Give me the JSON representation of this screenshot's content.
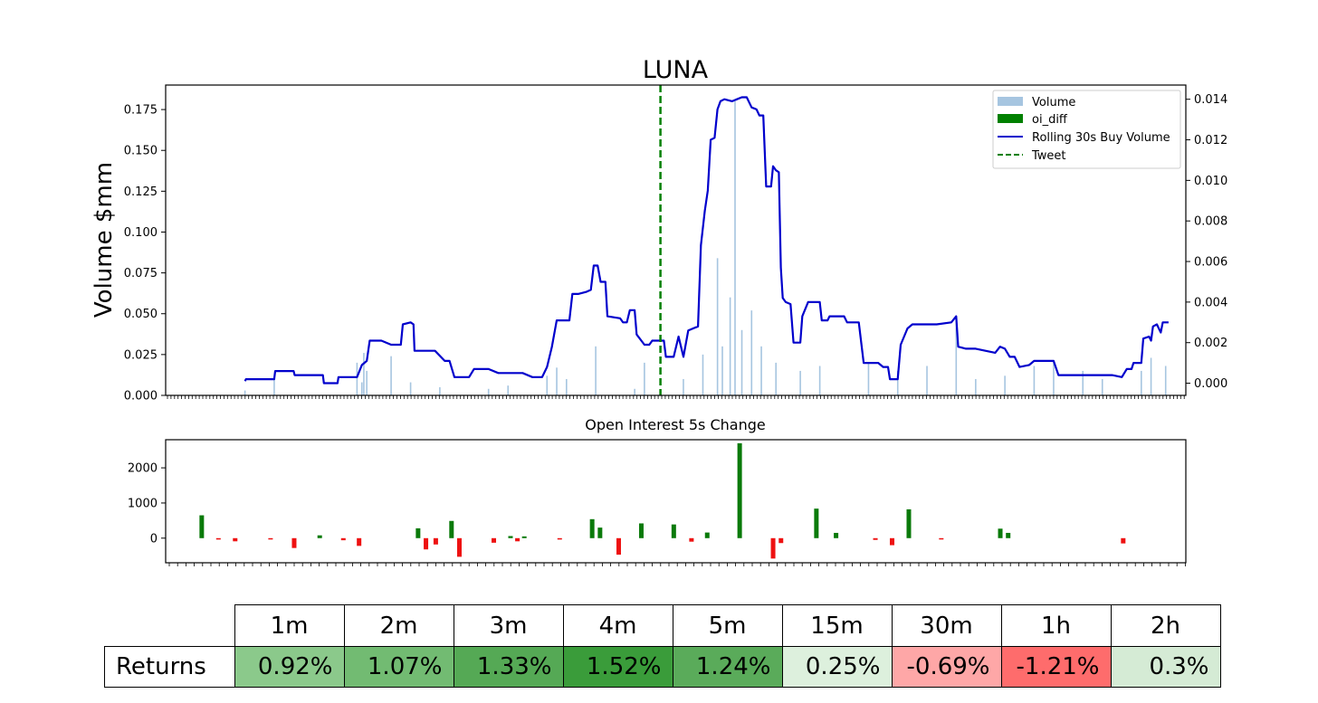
{
  "chart_data": [
    {
      "type": "bar",
      "title": "LUNA",
      "ylabel": "Volume $mm",
      "ylim": [
        0,
        0.19
      ],
      "yticks": [
        "0.000",
        "0.025",
        "0.050",
        "0.075",
        "0.100",
        "0.125",
        "0.150",
        "0.175"
      ],
      "y2lim": [
        -0.0006,
        0.0147
      ],
      "y2ticks": [
        "0.000",
        "0.002",
        "0.004",
        "0.006",
        "0.008",
        "0.010",
        "0.012",
        "0.014"
      ],
      "legend_position": "top-right",
      "legend": [
        "Volume",
        "oi_diff",
        "Rolling 30s Buy Volume",
        "Tweet"
      ],
      "colors": {
        "volume": "#a6c5e0",
        "oi_diff": "#008000",
        "rolling": "#0000cc",
        "tweet": "#008000"
      },
      "tweet_x": 0.485,
      "volume_spikes": [
        [
          0.05,
          0.003
        ],
        [
          0.08,
          0.01
        ],
        [
          0.17,
          0.008
        ],
        [
          0.165,
          0.02
        ],
        [
          0.172,
          0.026
        ],
        [
          0.175,
          0.015
        ],
        [
          0.2,
          0.024
        ],
        [
          0.22,
          0.008
        ],
        [
          0.25,
          0.005
        ],
        [
          0.3,
          0.004
        ],
        [
          0.32,
          0.006
        ],
        [
          0.36,
          0.012
        ],
        [
          0.37,
          0.017
        ],
        [
          0.38,
          0.01
        ],
        [
          0.41,
          0.03
        ],
        [
          0.45,
          0.004
        ],
        [
          0.46,
          0.02
        ],
        [
          0.5,
          0.01
        ],
        [
          0.52,
          0.025
        ],
        [
          0.535,
          0.084
        ],
        [
          0.54,
          0.03
        ],
        [
          0.548,
          0.06
        ],
        [
          0.553,
          0.18
        ],
        [
          0.56,
          0.04
        ],
        [
          0.57,
          0.052
        ],
        [
          0.58,
          0.03
        ],
        [
          0.595,
          0.02
        ],
        [
          0.62,
          0.015
        ],
        [
          0.64,
          0.018
        ],
        [
          0.69,
          0.02
        ],
        [
          0.72,
          0.015
        ],
        [
          0.75,
          0.018
        ],
        [
          0.78,
          0.047
        ],
        [
          0.8,
          0.01
        ],
        [
          0.83,
          0.012
        ],
        [
          0.86,
          0.018
        ],
        [
          0.88,
          0.02
        ],
        [
          0.91,
          0.015
        ],
        [
          0.93,
          0.01
        ],
        [
          0.97,
          0.015
        ],
        [
          0.98,
          0.023
        ],
        [
          0.995,
          0.018
        ]
      ],
      "series": [
        {
          "name": "Rolling 30s Buy Volume",
          "axis": "right",
          "points": [
            [
              0.05,
              0.0001
            ],
            [
              0.051,
              0.0002
            ],
            [
              0.08,
              0.0002
            ],
            [
              0.081,
              0.0006
            ],
            [
              0.1,
              0.0006
            ],
            [
              0.101,
              0.0004
            ],
            [
              0.13,
              0.0004
            ],
            [
              0.131,
              0.0
            ],
            [
              0.145,
              0.0
            ],
            [
              0.146,
              0.0003
            ],
            [
              0.165,
              0.0003
            ],
            [
              0.17,
              0.0009
            ],
            [
              0.175,
              0.0011
            ],
            [
              0.178,
              0.0021
            ],
            [
              0.19,
              0.0021
            ],
            [
              0.2,
              0.0019
            ],
            [
              0.21,
              0.0019
            ],
            [
              0.212,
              0.0029
            ],
            [
              0.22,
              0.003
            ],
            [
              0.223,
              0.0029
            ],
            [
              0.224,
              0.0016
            ],
            [
              0.235,
              0.0016
            ],
            [
              0.245,
              0.0016
            ],
            [
              0.255,
              0.0011
            ],
            [
              0.26,
              0.0011
            ],
            [
              0.265,
              0.0003
            ],
            [
              0.28,
              0.0003
            ],
            [
              0.285,
              0.0007
            ],
            [
              0.3,
              0.0007
            ],
            [
              0.31,
              0.0005
            ],
            [
              0.335,
              0.0005
            ],
            [
              0.345,
              0.0003
            ],
            [
              0.355,
              0.0003
            ],
            [
              0.36,
              0.0008
            ],
            [
              0.365,
              0.0018
            ],
            [
              0.37,
              0.0031
            ],
            [
              0.383,
              0.0031
            ],
            [
              0.386,
              0.0044
            ],
            [
              0.392,
              0.0044
            ],
            [
              0.4,
              0.0045
            ],
            [
              0.405,
              0.0046
            ],
            [
              0.408,
              0.0058
            ],
            [
              0.412,
              0.0058
            ],
            [
              0.415,
              0.005
            ],
            [
              0.42,
              0.005
            ],
            [
              0.422,
              0.0033
            ],
            [
              0.435,
              0.0032
            ],
            [
              0.438,
              0.003
            ],
            [
              0.442,
              0.003
            ],
            [
              0.445,
              0.0036
            ],
            [
              0.45,
              0.0036
            ],
            [
              0.452,
              0.0024
            ],
            [
              0.46,
              0.0019
            ],
            [
              0.465,
              0.0019
            ],
            [
              0.468,
              0.0021
            ],
            [
              0.48,
              0.0021
            ],
            [
              0.482,
              0.0013
            ],
            [
              0.49,
              0.0013
            ],
            [
              0.495,
              0.0023
            ],
            [
              0.5,
              0.0013
            ],
            [
              0.505,
              0.0026
            ],
            [
              0.51,
              0.0027
            ],
            [
              0.515,
              0.0028
            ],
            [
              0.518,
              0.0068
            ],
            [
              0.522,
              0.0085
            ],
            [
              0.525,
              0.0095
            ],
            [
              0.528,
              0.012
            ],
            [
              0.532,
              0.0121
            ],
            [
              0.535,
              0.0135
            ],
            [
              0.538,
              0.0139
            ],
            [
              0.542,
              0.014
            ],
            [
              0.55,
              0.0139
            ],
            [
              0.555,
              0.014
            ],
            [
              0.56,
              0.0141
            ],
            [
              0.565,
              0.0141
            ],
            [
              0.57,
              0.0136
            ],
            [
              0.575,
              0.0135
            ],
            [
              0.578,
              0.0132
            ],
            [
              0.582,
              0.0132
            ],
            [
              0.585,
              0.0097
            ],
            [
              0.59,
              0.0097
            ],
            [
              0.592,
              0.0107
            ],
            [
              0.595,
              0.0105
            ],
            [
              0.598,
              0.0104
            ],
            [
              0.6,
              0.0057
            ],
            [
              0.602,
              0.0042
            ],
            [
              0.605,
              0.004
            ],
            [
              0.61,
              0.0039
            ],
            [
              0.613,
              0.002
            ],
            [
              0.62,
              0.002
            ],
            [
              0.622,
              0.0033
            ],
            [
              0.628,
              0.004
            ],
            [
              0.64,
              0.004
            ],
            [
              0.642,
              0.0031
            ],
            [
              0.648,
              0.0031
            ],
            [
              0.65,
              0.0033
            ],
            [
              0.665,
              0.0033
            ],
            [
              0.668,
              0.003
            ],
            [
              0.675,
              0.003
            ],
            [
              0.68,
              0.003
            ],
            [
              0.685,
              0.001
            ],
            [
              0.7,
              0.001
            ],
            [
              0.705,
              0.0008
            ],
            [
              0.71,
              0.0008
            ],
            [
              0.712,
              0.0002
            ],
            [
              0.72,
              0.0002
            ],
            [
              0.723,
              0.0019
            ],
            [
              0.73,
              0.0027
            ],
            [
              0.735,
              0.0029
            ],
            [
              0.75,
              0.0029
            ],
            [
              0.76,
              0.0029
            ],
            [
              0.775,
              0.003
            ],
            [
              0.78,
              0.0033
            ],
            [
              0.782,
              0.0018
            ],
            [
              0.79,
              0.0017
            ],
            [
              0.8,
              0.0017
            ],
            [
              0.81,
              0.0016
            ],
            [
              0.82,
              0.0015
            ],
            [
              0.825,
              0.0018
            ],
            [
              0.83,
              0.0017
            ],
            [
              0.835,
              0.0013
            ],
            [
              0.84,
              0.0013
            ],
            [
              0.845,
              0.0008
            ],
            [
              0.855,
              0.0009
            ],
            [
              0.86,
              0.0011
            ],
            [
              0.87,
              0.0011
            ],
            [
              0.88,
              0.0011
            ],
            [
              0.885,
              0.0004
            ],
            [
              0.89,
              0.0004
            ],
            [
              0.9,
              0.0004
            ],
            [
              0.94,
              0.0004
            ],
            [
              0.95,
              0.0003
            ],
            [
              0.955,
              0.0007
            ],
            [
              0.96,
              0.0007
            ],
            [
              0.962,
              0.001
            ],
            [
              0.97,
              0.001
            ],
            [
              0.972,
              0.0022
            ],
            [
              0.978,
              0.0023
            ],
            [
              0.98,
              0.0021
            ],
            [
              0.982,
              0.0028
            ],
            [
              0.986,
              0.0029
            ],
            [
              0.99,
              0.0025
            ],
            [
              0.992,
              0.003
            ],
            [
              0.998,
              0.003
            ]
          ]
        }
      ]
    },
    {
      "type": "bar",
      "title": "Open Interest 5s Change",
      "ylim": [
        -700,
        2800
      ],
      "yticks": [
        "0",
        "1000",
        "2000"
      ],
      "bars": [
        [
          0.018,
          650
        ],
        [
          0.035,
          -40
        ],
        [
          0.052,
          -90
        ],
        [
          0.088,
          -30
        ],
        [
          0.112,
          -280
        ],
        [
          0.138,
          80
        ],
        [
          0.162,
          -60
        ],
        [
          0.178,
          -220
        ],
        [
          0.238,
          280
        ],
        [
          0.246,
          -320
        ],
        [
          0.256,
          -180
        ],
        [
          0.272,
          490
        ],
        [
          0.28,
          -530
        ],
        [
          0.315,
          -130
        ],
        [
          0.332,
          60
        ],
        [
          0.339,
          -90
        ],
        [
          0.346,
          50
        ],
        [
          0.382,
          -40
        ],
        [
          0.415,
          540
        ],
        [
          0.423,
          300
        ],
        [
          0.442,
          -470
        ],
        [
          0.465,
          420
        ],
        [
          0.498,
          390
        ],
        [
          0.516,
          -100
        ],
        [
          0.532,
          160
        ],
        [
          0.565,
          2700
        ],
        [
          0.599,
          -580
        ],
        [
          0.607,
          -140
        ],
        [
          0.643,
          840
        ],
        [
          0.663,
          150
        ],
        [
          0.703,
          -50
        ],
        [
          0.72,
          -200
        ],
        [
          0.737,
          820
        ],
        [
          0.77,
          -30
        ],
        [
          0.83,
          270
        ],
        [
          0.838,
          150
        ],
        [
          0.955,
          -150
        ]
      ]
    },
    {
      "type": "table",
      "columns": [
        "1m",
        "2m",
        "3m",
        "4m",
        "5m",
        "15m",
        "30m",
        "1h",
        "2h"
      ],
      "row_label": "Returns",
      "values": [
        "0.92%",
        "1.07%",
        "1.33%",
        "1.52%",
        "1.24%",
        "0.25%",
        "-0.69%",
        "-1.21%",
        "0.3%"
      ],
      "cell_colors": [
        "#8bc98b",
        "#72bb72",
        "#55a955",
        "#3a9c3a",
        "#5aab5a",
        "#ddf0dd",
        "#fea7a7",
        "#fe6c6c",
        "#d5ebd5"
      ]
    }
  ]
}
